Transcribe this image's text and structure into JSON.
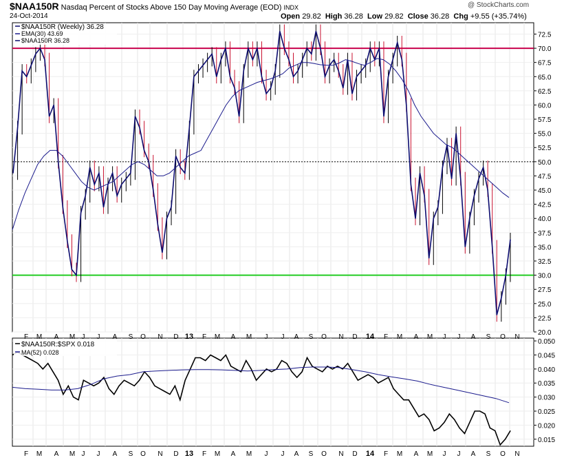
{
  "header": {
    "symbol": "$NAA150R",
    "description": "Nasdaq Percent of Stocks Above 150 Day Moving Average (EOD)",
    "exchange": "INDX",
    "date": "24-Oct-2014",
    "open_label": "Open",
    "open": "29.82",
    "high_label": "High",
    "high": "36.28",
    "low_label": "Low",
    "low": "29.82",
    "close_label": "Close",
    "close": "36.28",
    "chg_label": "Chg",
    "chg": "+9.55 (+35.74%)",
    "watermark": "@ StockCharts.com"
  },
  "colors": {
    "price": "#0b0b6e",
    "up_bar": "#000000",
    "down_bar": "#c8102e",
    "ema": "#1a1a8c",
    "line_70": "#c8004b",
    "line_30": "#22cc22",
    "line_50": "#000000",
    "ratio": "#000000",
    "ma52": "#1a1a8c"
  },
  "chart_data": [
    {
      "type": "line",
      "panel": "upper",
      "legend": [
        "$NAA150R (Weekly) 36.28",
        "EMA(30) 43.69",
        "$NAA150R 36.28"
      ],
      "x_labels": [
        "F",
        "M",
        "A",
        "M",
        "J",
        "J",
        "A",
        "S",
        "O",
        "N",
        "D",
        "13",
        "F",
        "M",
        "A",
        "M",
        "J",
        "J",
        "A",
        "S",
        "O",
        "N",
        "D",
        "14",
        "F",
        "M",
        "A",
        "M",
        "J",
        "J",
        "A",
        "S",
        "O",
        "N"
      ],
      "yticks": [
        "20.0",
        "22.5",
        "25.0",
        "27.5",
        "30.0",
        "32.5",
        "35.0",
        "37.5",
        "40.0",
        "42.5",
        "45.0",
        "47.5",
        "50.0",
        "52.5",
        "55.0",
        "57.5",
        "60.0",
        "62.5",
        "65.0",
        "67.5",
        "70.0",
        "72.5"
      ],
      "ylim": [
        20,
        74.5
      ],
      "reference_lines": [
        70,
        50,
        30
      ],
      "series": [
        {
          "name": "$NAA150R",
          "values": [
            48,
            56,
            66,
            65,
            67,
            69,
            70,
            68,
            58,
            60,
            50,
            42,
            36,
            31,
            30,
            41,
            44,
            49,
            46,
            48,
            42,
            46,
            48,
            44,
            46,
            47,
            48,
            58,
            56,
            52,
            50,
            45,
            39,
            34,
            40,
            42,
            51,
            49,
            48,
            56,
            65,
            66,
            67,
            68,
            69,
            65,
            68,
            70,
            65,
            63,
            58,
            66,
            70,
            68,
            70,
            65,
            62,
            63,
            66,
            73,
            70,
            68,
            65,
            66,
            68,
            70,
            69,
            73,
            70,
            65,
            67,
            68,
            66,
            63,
            68,
            62,
            65,
            66,
            67,
            70,
            68,
            70,
            58,
            65,
            68,
            71,
            68,
            60,
            46,
            40,
            48,
            44,
            33,
            40,
            42,
            49,
            53,
            47,
            55,
            47,
            35,
            40,
            44,
            47,
            49,
            45,
            35,
            23,
            26,
            30,
            36.28
          ]
        },
        {
          "name": "EMA(30)",
          "values": [
            38,
            41.5,
            44.5,
            47,
            49.5,
            51,
            52,
            52,
            51,
            49.5,
            48,
            46.5,
            45.5,
            45,
            45.5,
            46,
            46.5,
            47.5,
            48.5,
            49.5,
            50,
            49.5,
            48.5,
            47.5,
            47.5,
            48,
            49,
            50,
            51,
            51.5,
            52,
            54,
            56,
            58,
            60,
            61.5,
            62.5,
            63,
            63.5,
            64,
            64.3,
            64.6,
            65,
            65.5,
            66.5,
            67,
            67.5,
            67.5,
            67.3,
            67.1,
            67,
            67,
            67.4,
            68,
            67.7,
            67.3,
            67,
            67.5,
            68.2,
            68,
            67.2,
            66,
            64.5,
            62.5,
            60,
            58,
            56.5,
            55,
            54,
            53,
            52.5,
            51.5,
            50.5,
            49.5,
            48.5,
            47.5,
            46.5,
            45.5,
            44.5,
            43.69
          ]
        }
      ]
    },
    {
      "type": "line",
      "panel": "lower",
      "legend": [
        "$NAA150R:$SPX 0.018",
        "MA(52) 0.028"
      ],
      "x_labels": [
        "F",
        "M",
        "A",
        "M",
        "J",
        "J",
        "A",
        "S",
        "O",
        "N",
        "D",
        "13",
        "F",
        "M",
        "A",
        "M",
        "J",
        "J",
        "A",
        "S",
        "O",
        "N",
        "D",
        "14",
        "F",
        "M",
        "A",
        "M",
        "J",
        "J",
        "A",
        "S",
        "O",
        "N"
      ],
      "yticks": [
        "0.015",
        "0.020",
        "0.025",
        "0.030",
        "0.035",
        "0.040",
        "0.045",
        "0.050"
      ],
      "ylim": [
        0.0125,
        0.051
      ],
      "series": [
        {
          "name": "$NAA150R:$SPX",
          "values": [
            0.045,
            0.046,
            0.045,
            0.044,
            0.043,
            0.042,
            0.04,
            0.042,
            0.039,
            0.036,
            0.031,
            0.034,
            0.03,
            0.029,
            0.036,
            0.035,
            0.034,
            0.035,
            0.037,
            0.033,
            0.031,
            0.034,
            0.036,
            0.035,
            0.034,
            0.036,
            0.039,
            0.037,
            0.034,
            0.033,
            0.032,
            0.031,
            0.034,
            0.029,
            0.036,
            0.04,
            0.044,
            0.044,
            0.043,
            0.045,
            0.044,
            0.043,
            0.045,
            0.041,
            0.04,
            0.039,
            0.043,
            0.04,
            0.036,
            0.038,
            0.04,
            0.039,
            0.04,
            0.043,
            0.042,
            0.039,
            0.037,
            0.039,
            0.044,
            0.041,
            0.04,
            0.039,
            0.041,
            0.04,
            0.041,
            0.04,
            0.042,
            0.039,
            0.036,
            0.037,
            0.038,
            0.037,
            0.035,
            0.036,
            0.037,
            0.033,
            0.031,
            0.029,
            0.029,
            0.026,
            0.023,
            0.024,
            0.022,
            0.018,
            0.019,
            0.021,
            0.024,
            0.022,
            0.019,
            0.017,
            0.021,
            0.025,
            0.025,
            0.024,
            0.019,
            0.018,
            0.013,
            0.015,
            0.018
          ]
        },
        {
          "name": "MA(52)",
          "values": [
            0.0335,
            0.033,
            0.0328,
            0.0325,
            0.0325,
            0.033,
            0.0345,
            0.0365,
            0.0375,
            0.038,
            0.039,
            0.0393,
            0.0395,
            0.0397,
            0.0398,
            0.0398,
            0.0397,
            0.0395,
            0.0393,
            0.0395,
            0.0398,
            0.04,
            0.0405,
            0.0407,
            0.0407,
            0.0405,
            0.0398,
            0.039,
            0.038,
            0.0372,
            0.0365,
            0.0357,
            0.0345,
            0.0335,
            0.0325,
            0.0315,
            0.0305,
            0.0295,
            0.028
          ]
        }
      ]
    }
  ]
}
